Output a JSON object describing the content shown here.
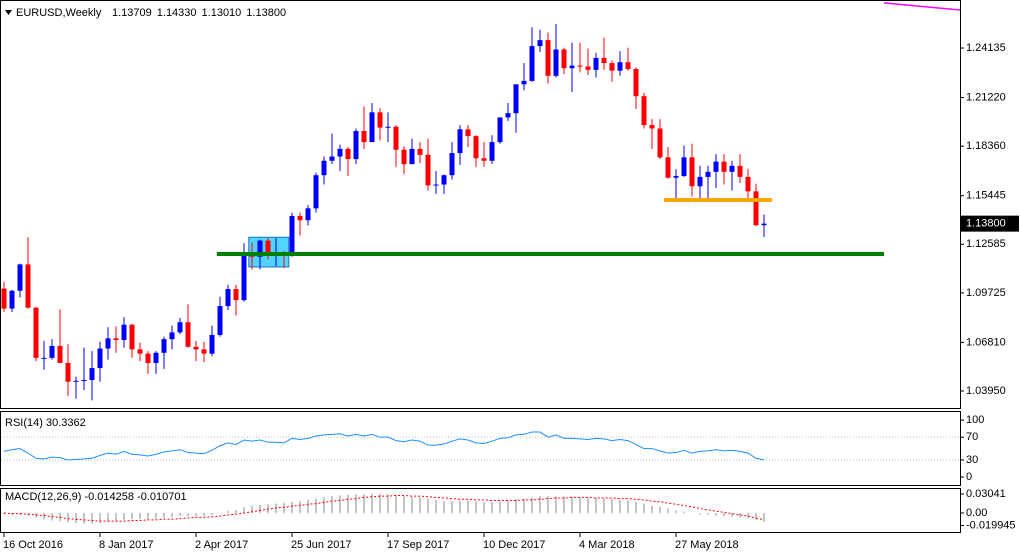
{
  "chart_data": {
    "type": "candlestick",
    "title": "EURUSD,Weekly",
    "header_labels": [
      "1.13709",
      "1.14330",
      "1.13010",
      "1.13800"
    ],
    "xlim": [
      -0.5,
      119.5
    ],
    "xticks": [
      {
        "value": 0,
        "label": "16 Oct 2016"
      },
      {
        "value": 12,
        "label": "8 Jan 2017"
      },
      {
        "value": 24,
        "label": "2 Apr 2017"
      },
      {
        "value": 36,
        "label": "25 Jun 2017"
      },
      {
        "value": 48,
        "label": "17 Sep 2017"
      },
      {
        "value": 60,
        "label": "10 Dec 2017"
      },
      {
        "value": 72,
        "label": "4 Mar 2018"
      },
      {
        "value": 84,
        "label": "27 May 2018"
      }
    ],
    "ylim": [
      1.0295,
      1.2649
    ],
    "yticks": [
      1.24135,
      {
        "value": 1.2122,
        "label": "1.21220"
      },
      {
        "value": 1.1836,
        "label": "1.18360"
      },
      1.15445,
      1.12585,
      1.09725,
      {
        "value": 1.0681,
        "label": "1.06810"
      },
      {
        "value": 1.0395,
        "label": "1.03950"
      }
    ],
    "up_color": "#0000ff",
    "down_color": "#ff0000",
    "open": [
      1.0998,
      1.088,
      1.0985,
      1.114,
      1.0885,
      1.059,
      1.059,
      1.066,
      1.056,
      1.045,
      1.0455,
      1.046,
      1.053,
      1.0645,
      1.0705,
      1.0695,
      1.0785,
      1.064,
      1.0615,
      1.056,
      1.062,
      1.07,
      1.074,
      1.08,
      1.0655,
      1.064,
      1.0615,
      1.0725,
      1.0895,
      1.0995,
      1.093,
      1.1205,
      1.1185,
      1.128,
      1.1195,
      1.12,
      1.1195,
      1.1425,
      1.14,
      1.147,
      1.1665,
      1.175,
      1.1775,
      1.182,
      1.176,
      1.1925,
      1.186,
      1.2035,
      1.1945,
      1.195,
      1.1815,
      1.173,
      1.182,
      1.1785,
      1.1605,
      1.161,
      1.1665,
      1.1795,
      1.1935,
      1.1895,
      1.1765,
      1.175,
      1.186,
      1.2005,
      1.203,
      1.22,
      1.222,
      1.2425,
      1.246,
      1.225,
      1.2405,
      1.2295,
      1.231,
      1.2305,
      1.2285,
      1.2355,
      1.2325,
      1.228,
      1.233,
      1.229,
      1.213,
      1.196,
      1.194,
      1.177,
      1.165,
      1.166,
      1.177,
      1.16,
      1.1655,
      1.1685,
      1.1745,
      1.1685,
      1.172,
      1.1655,
      1.157,
      1.13709
    ],
    "high": [
      1.1038,
      1.099,
      1.1145,
      1.13,
      1.089,
      1.069,
      1.07,
      1.0875,
      1.067,
      1.048,
      1.065,
      1.063,
      1.0685,
      1.077,
      1.0775,
      1.083,
      1.079,
      1.068,
      1.063,
      1.063,
      1.0715,
      1.078,
      1.0825,
      1.0905,
      1.069,
      1.0685,
      1.078,
      1.095,
      1.102,
      1.102,
      1.1265,
      1.127,
      1.1285,
      1.1295,
      1.1295,
      1.122,
      1.1445,
      1.1445,
      1.149,
      1.168,
      1.1775,
      1.191,
      1.1845,
      1.183,
      1.194,
      1.207,
      1.209,
      1.206,
      1.2035,
      1.196,
      1.1835,
      1.188,
      1.186,
      1.188,
      1.169,
      1.167,
      1.186,
      1.196,
      1.196,
      1.19,
      1.186,
      1.19,
      1.2005,
      1.209,
      1.2195,
      1.2325,
      1.2535,
      1.252,
      1.2505,
      1.2555,
      1.2415,
      1.2445,
      1.2445,
      1.241,
      1.2385,
      1.2475,
      1.234,
      1.2395,
      1.2415,
      1.23,
      1.215,
      1.1995,
      1.1995,
      1.183,
      1.17,
      1.184,
      1.185,
      1.172,
      1.172,
      1.179,
      1.179,
      1.175,
      1.179,
      1.17,
      1.1615,
      1.1433
    ],
    "low": [
      1.086,
      1.086,
      1.0945,
      1.088,
      1.057,
      1.052,
      1.058,
      1.056,
      1.0365,
      1.035,
      1.04,
      1.034,
      1.045,
      1.058,
      1.062,
      1.065,
      1.059,
      1.057,
      1.0495,
      1.0495,
      1.0525,
      1.064,
      1.073,
      1.065,
      1.057,
      1.0565,
      1.06,
      1.0715,
      1.087,
      1.084,
      1.092,
      1.111,
      1.111,
      1.117,
      1.113,
      1.112,
      1.1185,
      1.131,
      1.137,
      1.1445,
      1.161,
      1.173,
      1.169,
      1.166,
      1.173,
      1.182,
      1.186,
      1.187,
      1.186,
      1.1715,
      1.167,
      1.173,
      1.1735,
      1.1575,
      1.1555,
      1.1555,
      1.164,
      1.1725,
      1.183,
      1.1715,
      1.1715,
      1.173,
      1.185,
      1.1985,
      1.1915,
      1.2165,
      1.2215,
      1.239,
      1.2205,
      1.224,
      1.226,
      1.2155,
      1.227,
      1.2255,
      1.224,
      1.2285,
      1.2215,
      1.225,
      1.228,
      1.2055,
      1.194,
      1.182,
      1.176,
      1.1645,
      1.151,
      1.1655,
      1.154,
      1.151,
      1.1525,
      1.159,
      1.161,
      1.1575,
      1.162,
      1.153,
      1.1365,
      1.1301
    ],
    "close": [
      1.088,
      1.0985,
      1.114,
      1.0885,
      1.059,
      1.059,
      1.066,
      1.056,
      1.045,
      1.0455,
      1.046,
      1.053,
      1.0645,
      1.0705,
      1.0695,
      1.0785,
      1.064,
      1.0615,
      1.056,
      1.062,
      1.07,
      1.074,
      1.08,
      1.0655,
      1.064,
      1.0615,
      1.0725,
      1.0895,
      1.0995,
      1.093,
      1.1205,
      1.1185,
      1.128,
      1.1195,
      1.12,
      1.1195,
      1.1425,
      1.14,
      1.147,
      1.1665,
      1.175,
      1.1775,
      1.182,
      1.176,
      1.1925,
      1.186,
      1.2035,
      1.1945,
      1.195,
      1.1815,
      1.173,
      1.182,
      1.1785,
      1.1605,
      1.161,
      1.1665,
      1.1795,
      1.1935,
      1.1895,
      1.1765,
      1.175,
      1.186,
      1.2005,
      1.203,
      1.22,
      1.222,
      1.2425,
      1.246,
      1.225,
      1.2405,
      1.2295,
      1.231,
      1.2305,
      1.2285,
      1.2355,
      1.2325,
      1.228,
      1.233,
      1.229,
      1.213,
      1.196,
      1.194,
      1.177,
      1.165,
      1.166,
      1.177,
      1.16,
      1.1655,
      1.1685,
      1.1745,
      1.1685,
      1.172,
      1.1655,
      1.157,
      1.13709,
      1.138
    ],
    "price_label": {
      "value": 1.138,
      "label": "1.13800"
    },
    "levels": [
      {
        "color": "#008000",
        "value": 1.1201,
        "x": [
          26.6,
          110
        ]
      },
      {
        "color": "#ffa500",
        "value": 1.1519,
        "x": [
          82.5,
          96
        ]
      }
    ],
    "zones": [
      {
        "color": "#33ccff",
        "y": [
          1.1125,
          1.13
        ],
        "x": [
          30.6,
          35.6
        ]
      }
    ],
    "ma": {
      "color": "#ff00ff",
      "x": [
        110,
        119.5
      ],
      "values": [
        1.2679,
        1.2637
      ]
    },
    "rsi": {
      "title": "RSI(14) 30.3362",
      "ylim": [
        -14,
        116
      ],
      "yticks": [
        100,
        70,
        30,
        0
      ],
      "color": "#1e90ff",
      "values": [
        45,
        48,
        50,
        42,
        33,
        32,
        35,
        34,
        30,
        31,
        32,
        33,
        38,
        42,
        40,
        45,
        40,
        39,
        37,
        40,
        44,
        46,
        48,
        43,
        42,
        41,
        47,
        55,
        60,
        57,
        65,
        63,
        65,
        61,
        61,
        60,
        68,
        66,
        68,
        72,
        74,
        75,
        76,
        72,
        75,
        72,
        75,
        70,
        70,
        64,
        62,
        65,
        63,
        56,
        56,
        58,
        63,
        67,
        65,
        60,
        59,
        63,
        68,
        69,
        74,
        75,
        79,
        79,
        70,
        74,
        68,
        68,
        67,
        66,
        68,
        67,
        64,
        66,
        64,
        57,
        50,
        50,
        46,
        42,
        43,
        47,
        42,
        45,
        46,
        48,
        46,
        47,
        45,
        42,
        33,
        30.3362
      ]
    },
    "macd": {
      "title": "MACD(12,26,9) -0.014258 -0.010701",
      "ylim": [
        -0.0304,
        0.04
      ],
      "yticks": [
        0.03041,
        {
          "value": 0,
          "label": "0.00"
        },
        -0.019945
      ],
      "hist_color": "#b0b0b0",
      "signal_color": "#ff0000",
      "values": [
        -0.002,
        -0.003,
        -0.003,
        -0.004,
        -0.007,
        -0.01,
        -0.012,
        -0.013,
        -0.015,
        -0.016,
        -0.017,
        -0.017,
        -0.016,
        -0.014,
        -0.013,
        -0.011,
        -0.01,
        -0.01,
        -0.01,
        -0.009,
        -0.008,
        -0.007,
        -0.005,
        -0.005,
        -0.005,
        -0.005,
        -0.003,
        0.0,
        0.003,
        0.005,
        0.009,
        0.011,
        0.013,
        0.014,
        0.015,
        0.016,
        0.018,
        0.019,
        0.021,
        0.023,
        0.025,
        0.027,
        0.028,
        0.029,
        0.03,
        0.03,
        0.031,
        0.031,
        0.03,
        0.029,
        0.027,
        0.026,
        0.025,
        0.023,
        0.021,
        0.019,
        0.019,
        0.02,
        0.02,
        0.019,
        0.018,
        0.018,
        0.019,
        0.02,
        0.022,
        0.023,
        0.025,
        0.027,
        0.027,
        0.027,
        0.027,
        0.026,
        0.025,
        0.024,
        0.024,
        0.023,
        0.022,
        0.021,
        0.02,
        0.018,
        0.015,
        0.012,
        0.01,
        0.007,
        0.004,
        0.002,
        0.0,
        -0.002,
        -0.003,
        -0.004,
        -0.005,
        -0.006,
        -0.007,
        -0.008,
        -0.011,
        -0.014258
      ],
      "signal": [
        0.0,
        -0.001,
        -0.001,
        -0.002,
        -0.003,
        -0.004,
        -0.006,
        -0.007,
        -0.009,
        -0.01,
        -0.011,
        -0.012,
        -0.013,
        -0.013,
        -0.013,
        -0.013,
        -0.012,
        -0.012,
        -0.011,
        -0.011,
        -0.01,
        -0.01,
        -0.009,
        -0.008,
        -0.007,
        -0.007,
        -0.006,
        -0.005,
        -0.003,
        -0.002,
        0.0,
        0.002,
        0.004,
        0.006,
        0.008,
        0.009,
        0.011,
        0.012,
        0.014,
        0.015,
        0.017,
        0.019,
        0.02,
        0.022,
        0.023,
        0.025,
        0.026,
        0.027,
        0.027,
        0.028,
        0.028,
        0.027,
        0.027,
        0.026,
        0.025,
        0.024,
        0.023,
        0.022,
        0.022,
        0.021,
        0.021,
        0.02,
        0.02,
        0.02,
        0.02,
        0.021,
        0.021,
        0.022,
        0.023,
        0.024,
        0.024,
        0.025,
        0.025,
        0.025,
        0.024,
        0.024,
        0.024,
        0.023,
        0.023,
        0.022,
        0.021,
        0.019,
        0.018,
        0.016,
        0.014,
        0.012,
        0.01,
        0.007,
        0.005,
        0.003,
        0.001,
        -0.001,
        -0.003,
        -0.005,
        -0.008,
        -0.010701
      ]
    }
  }
}
